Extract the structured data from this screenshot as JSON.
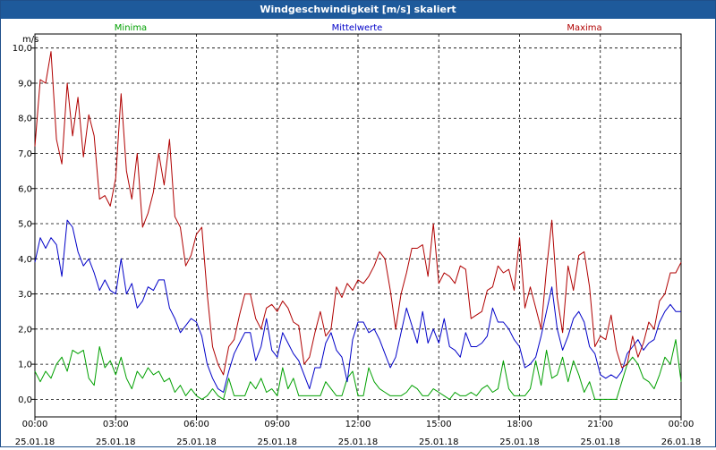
{
  "window": {
    "title": "Windgeschwindigkeit [m/s] skaliert"
  },
  "chart_data": {
    "type": "line",
    "title": "Windgeschwindigkeit [m/s] skaliert",
    "ylabel": "m/s",
    "ylim": [
      -0.5,
      10.4
    ],
    "yticks": [
      "0,0",
      "1,0",
      "2,0",
      "3,0",
      "4,0",
      "5,0",
      "6,0",
      "7,0",
      "8,0",
      "9,0",
      "10,0"
    ],
    "xlim": [
      0,
      24
    ],
    "xticks": [
      {
        "time": "00:00",
        "date": "25.01.18"
      },
      {
        "time": "03:00",
        "date": "25.01.18"
      },
      {
        "time": "06:00",
        "date": "25.01.18"
      },
      {
        "time": "09:00",
        "date": "25.01.18"
      },
      {
        "time": "12:00",
        "date": "25.01.18"
      },
      {
        "time": "15:00",
        "date": "25.01.18"
      },
      {
        "time": "18:00",
        "date": "25.01.18"
      },
      {
        "time": "21:00",
        "date": "25.01.18"
      },
      {
        "time": "00:00",
        "date": "26.01.18"
      }
    ],
    "grid": true,
    "series": [
      {
        "name": "Minima",
        "color": "#00a000",
        "x": [
          0,
          0.2,
          0.4,
          0.6,
          0.8,
          1.0,
          1.2,
          1.4,
          1.6,
          1.8,
          2.0,
          2.2,
          2.4,
          2.6,
          2.8,
          3.0,
          3.2,
          3.4,
          3.6,
          3.8,
          4.0,
          4.2,
          4.4,
          4.6,
          4.8,
          5.0,
          5.2,
          5.4,
          5.6,
          5.8,
          6.0,
          6.2,
          6.4,
          6.6,
          6.8,
          7.0,
          7.2,
          7.4,
          7.6,
          7.8,
          8.0,
          8.2,
          8.4,
          8.6,
          8.8,
          9.0,
          9.2,
          9.4,
          9.6,
          9.8,
          10.0,
          10.2,
          10.4,
          10.6,
          10.8,
          11.0,
          11.2,
          11.4,
          11.6,
          11.8,
          12.0,
          12.2,
          12.4,
          12.6,
          12.8,
          13.0,
          13.2,
          13.4,
          13.6,
          13.8,
          14.0,
          14.2,
          14.4,
          14.6,
          14.8,
          15.0,
          15.2,
          15.4,
          15.6,
          15.8,
          16.0,
          16.2,
          16.4,
          16.6,
          16.8,
          17.0,
          17.2,
          17.4,
          17.6,
          17.8,
          18.0,
          18.2,
          18.4,
          18.6,
          18.8,
          19.0,
          19.2,
          19.4,
          19.6,
          19.8,
          20.0,
          20.2,
          20.4,
          20.6,
          20.8,
          21.0,
          21.2,
          21.4,
          21.6,
          21.8,
          22.0,
          22.2,
          22.4,
          22.6,
          22.8,
          23.0,
          23.2,
          23.4,
          23.6,
          23.8,
          24.0
        ],
        "values": [
          0.8,
          0.5,
          0.8,
          0.6,
          1.0,
          1.2,
          0.8,
          1.4,
          1.3,
          1.4,
          0.6,
          0.4,
          1.5,
          0.9,
          1.1,
          0.7,
          1.2,
          0.6,
          0.3,
          0.8,
          0.6,
          0.9,
          0.7,
          0.8,
          0.5,
          0.6,
          0.2,
          0.4,
          0.1,
          0.3,
          0.1,
          0.0,
          0.1,
          0.3,
          0.1,
          0.0,
          0.6,
          0.1,
          0.1,
          0.1,
          0.5,
          0.3,
          0.6,
          0.2,
          0.3,
          0.1,
          0.9,
          0.3,
          0.6,
          0.1,
          0.1,
          0.1,
          0.1,
          0.1,
          0.5,
          0.3,
          0.1,
          0.1,
          0.6,
          0.8,
          0.1,
          0.1,
          0.9,
          0.5,
          0.3,
          0.2,
          0.1,
          0.1,
          0.1,
          0.2,
          0.4,
          0.3,
          0.1,
          0.1,
          0.3,
          0.2,
          0.1,
          0.0,
          0.2,
          0.1,
          0.1,
          0.2,
          0.1,
          0.3,
          0.4,
          0.2,
          0.3,
          1.1,
          0.3,
          0.1,
          0.1,
          0.1,
          0.3,
          1.1,
          0.4,
          1.4,
          0.6,
          0.7,
          1.2,
          0.5,
          1.1,
          0.7,
          0.2,
          0.5,
          0.0,
          0.0,
          0.0,
          0.0,
          0.0,
          0.5,
          1.0,
          1.2,
          1.0,
          0.6,
          0.5,
          0.3,
          0.7,
          1.2,
          1.0,
          1.7,
          0.5
        ]
      },
      {
        "name": "Mittelwerte",
        "color": "#0000c8",
        "x": [
          0,
          0.2,
          0.4,
          0.6,
          0.8,
          1.0,
          1.2,
          1.4,
          1.6,
          1.8,
          2.0,
          2.2,
          2.4,
          2.6,
          2.8,
          3.0,
          3.2,
          3.4,
          3.6,
          3.8,
          4.0,
          4.2,
          4.4,
          4.6,
          4.8,
          5.0,
          5.2,
          5.4,
          5.6,
          5.8,
          6.0,
          6.2,
          6.4,
          6.6,
          6.8,
          7.0,
          7.2,
          7.4,
          7.6,
          7.8,
          8.0,
          8.2,
          8.4,
          8.6,
          8.8,
          9.0,
          9.2,
          9.4,
          9.6,
          9.8,
          10.0,
          10.2,
          10.4,
          10.6,
          10.8,
          11.0,
          11.2,
          11.4,
          11.6,
          11.8,
          12.0,
          12.2,
          12.4,
          12.6,
          12.8,
          13.0,
          13.2,
          13.4,
          13.6,
          13.8,
          14.0,
          14.2,
          14.4,
          14.6,
          14.8,
          15.0,
          15.2,
          15.4,
          15.6,
          15.8,
          16.0,
          16.2,
          16.4,
          16.6,
          16.8,
          17.0,
          17.2,
          17.4,
          17.6,
          17.8,
          18.0,
          18.2,
          18.4,
          18.6,
          18.8,
          19.0,
          19.2,
          19.4,
          19.6,
          19.8,
          20.0,
          20.2,
          20.4,
          20.6,
          20.8,
          21.0,
          21.2,
          21.4,
          21.6,
          21.8,
          22.0,
          22.2,
          22.4,
          22.6,
          22.8,
          23.0,
          23.2,
          23.4,
          23.6,
          23.8,
          24.0
        ],
        "values": [
          3.9,
          4.6,
          4.3,
          4.6,
          4.4,
          3.5,
          5.1,
          4.9,
          4.2,
          3.8,
          4.0,
          3.6,
          3.1,
          3.4,
          3.1,
          3.0,
          4.0,
          3.0,
          3.3,
          2.6,
          2.8,
          3.2,
          3.1,
          3.4,
          3.4,
          2.6,
          2.3,
          1.9,
          2.1,
          2.3,
          2.2,
          1.8,
          1.0,
          0.6,
          0.3,
          0.2,
          0.8,
          1.3,
          1.6,
          1.9,
          1.9,
          1.1,
          1.5,
          2.3,
          1.4,
          1.2,
          1.9,
          1.6,
          1.3,
          1.1,
          0.7,
          0.3,
          0.9,
          0.9,
          1.6,
          1.9,
          1.4,
          1.2,
          0.5,
          1.7,
          2.2,
          2.2,
          1.9,
          2.0,
          1.7,
          1.3,
          0.9,
          1.2,
          1.9,
          2.6,
          2.1,
          1.6,
          2.5,
          1.6,
          2.0,
          1.6,
          2.3,
          1.5,
          1.4,
          1.2,
          1.9,
          1.5,
          1.5,
          1.6,
          1.8,
          2.6,
          2.2,
          2.2,
          2.0,
          1.7,
          1.5,
          0.9,
          1.0,
          1.2,
          1.8,
          2.5,
          3.2,
          2.0,
          1.4,
          1.8,
          2.3,
          2.5,
          2.2,
          1.5,
          1.3,
          0.7,
          0.6,
          0.7,
          0.6,
          0.8,
          1.3,
          1.5,
          1.7,
          1.4,
          1.6,
          1.7,
          2.2,
          2.5,
          2.7,
          2.5,
          2.5
        ]
      },
      {
        "name": "Maxima",
        "color": "#b00000",
        "x": [
          0,
          0.2,
          0.4,
          0.6,
          0.8,
          1.0,
          1.2,
          1.4,
          1.6,
          1.8,
          2.0,
          2.2,
          2.4,
          2.6,
          2.8,
          3.0,
          3.2,
          3.4,
          3.6,
          3.8,
          4.0,
          4.2,
          4.4,
          4.6,
          4.8,
          5.0,
          5.2,
          5.4,
          5.6,
          5.8,
          6.0,
          6.2,
          6.4,
          6.6,
          6.8,
          7.0,
          7.2,
          7.4,
          7.6,
          7.8,
          8.0,
          8.2,
          8.4,
          8.6,
          8.8,
          9.0,
          9.2,
          9.4,
          9.6,
          9.8,
          10.0,
          10.2,
          10.4,
          10.6,
          10.8,
          11.0,
          11.2,
          11.4,
          11.6,
          11.8,
          12.0,
          12.2,
          12.4,
          12.6,
          12.8,
          13.0,
          13.2,
          13.4,
          13.6,
          13.8,
          14.0,
          14.2,
          14.4,
          14.6,
          14.8,
          15.0,
          15.2,
          15.4,
          15.6,
          15.8,
          16.0,
          16.2,
          16.4,
          16.6,
          16.8,
          17.0,
          17.2,
          17.4,
          17.6,
          17.8,
          18.0,
          18.2,
          18.4,
          18.6,
          18.8,
          19.0,
          19.2,
          19.4,
          19.6,
          19.8,
          20.0,
          20.2,
          20.4,
          20.6,
          20.8,
          21.0,
          21.2,
          21.4,
          21.6,
          21.8,
          22.0,
          22.2,
          22.4,
          22.6,
          22.8,
          23.0,
          23.2,
          23.4,
          23.6,
          23.8,
          24.0
        ],
        "values": [
          7.2,
          9.1,
          9.0,
          9.9,
          7.4,
          6.7,
          9.0,
          7.5,
          8.6,
          6.9,
          8.1,
          7.5,
          5.7,
          5.8,
          5.5,
          6.3,
          8.7,
          6.5,
          5.7,
          7.0,
          4.9,
          5.3,
          5.9,
          7.0,
          6.1,
          7.4,
          5.2,
          4.9,
          3.8,
          4.1,
          4.7,
          4.9,
          3.0,
          1.5,
          1.0,
          0.7,
          1.5,
          1.7,
          2.4,
          3.0,
          3.0,
          2.3,
          2.0,
          2.6,
          2.7,
          2.5,
          2.8,
          2.6,
          2.2,
          2.1,
          1.0,
          1.2,
          1.9,
          2.5,
          1.8,
          2.0,
          3.2,
          2.9,
          3.3,
          3.1,
          3.4,
          3.3,
          3.5,
          3.8,
          4.2,
          4.0,
          3.1,
          2.0,
          3.0,
          3.6,
          4.3,
          4.3,
          4.4,
          3.5,
          5.0,
          3.3,
          3.6,
          3.5,
          3.3,
          3.8,
          3.7,
          2.3,
          2.4,
          2.5,
          3.1,
          3.2,
          3.8,
          3.6,
          3.7,
          3.1,
          4.6,
          2.6,
          3.2,
          2.6,
          2.0,
          3.7,
          5.1,
          2.9,
          1.9,
          3.8,
          3.1,
          4.1,
          4.2,
          3.2,
          1.5,
          1.8,
          1.7,
          2.4,
          1.4,
          0.9,
          1.0,
          1.8,
          1.2,
          1.6,
          2.2,
          2.0,
          2.8,
          3.0,
          3.6,
          3.6,
          3.9
        ]
      }
    ]
  }
}
